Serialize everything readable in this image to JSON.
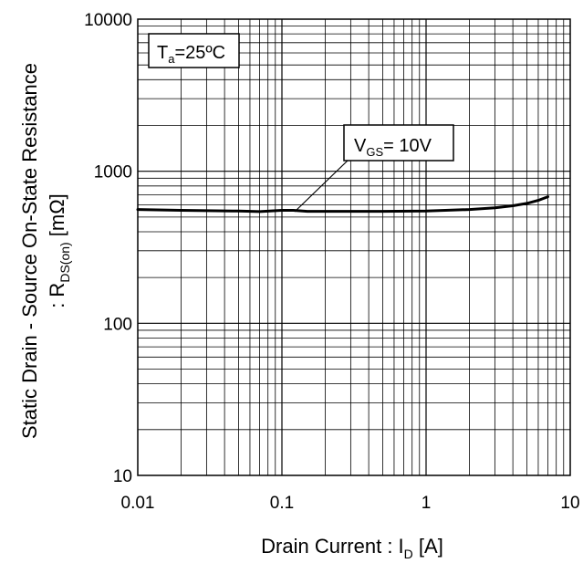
{
  "chart_data": {
    "type": "line",
    "x_scale": "log",
    "y_scale": "log",
    "xlim": [
      0.01,
      10
    ],
    "ylim": [
      10,
      10000
    ],
    "grid": true,
    "x_ticks": [
      {
        "value": 0.01,
        "label": "0.01"
      },
      {
        "value": 0.1,
        "label": "0.1"
      },
      {
        "value": 1,
        "label": "1"
      },
      {
        "value": 10,
        "label": "10"
      }
    ],
    "y_ticks": [
      {
        "value": 10,
        "label": "10"
      },
      {
        "value": 100,
        "label": "100"
      },
      {
        "value": 1000,
        "label": "1000"
      },
      {
        "value": 10000,
        "label": "10000"
      }
    ],
    "xlabel": {
      "main": "Drain Current : I",
      "sub": "D",
      "unit": " [A]"
    },
    "ylabel": {
      "line1": "Static Drain - Source On-State Resistance",
      "line2_main": ": R",
      "line2_sub": "DS(on)",
      "line2_unit": " [mΩ]"
    },
    "condition": {
      "main": "T",
      "sub": "a",
      "rest": "=25ºC"
    },
    "series": [
      {
        "label": {
          "main": "V",
          "sub": "GS",
          "rest": "= 10V"
        },
        "points": [
          [
            0.01,
            560
          ],
          [
            0.02,
            553
          ],
          [
            0.05,
            547
          ],
          [
            0.07,
            543
          ],
          [
            0.1,
            553
          ],
          [
            0.12,
            553
          ],
          [
            0.15,
            545
          ],
          [
            0.2,
            545
          ],
          [
            0.5,
            545
          ],
          [
            1.0,
            548
          ],
          [
            2.0,
            560
          ],
          [
            3.0,
            575
          ],
          [
            4.0,
            593
          ],
          [
            5.0,
            615
          ],
          [
            6.0,
            643
          ],
          [
            7.0,
            680
          ]
        ]
      }
    ]
  }
}
